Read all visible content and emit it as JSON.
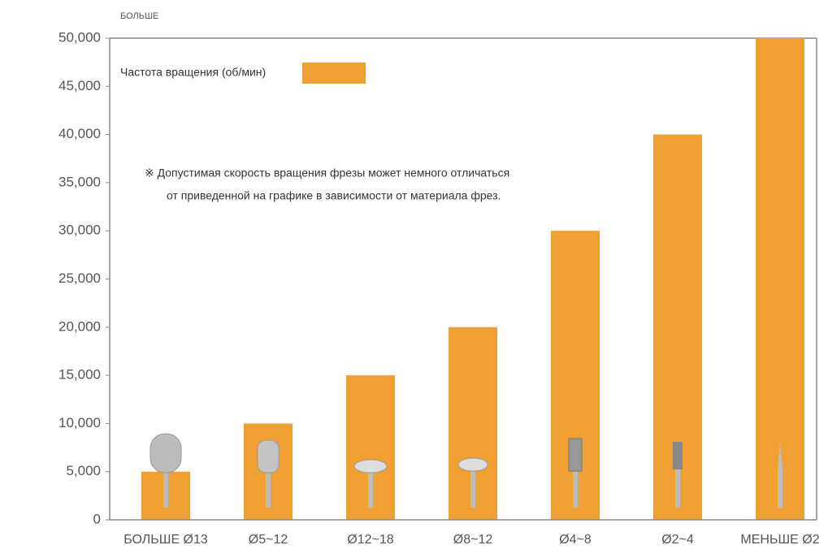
{
  "chart_data": {
    "type": "bar",
    "ylabel": "БОЛЬШЕ",
    "categories": [
      "БОЛЬШЕ Ø13",
      "Ø5~12",
      "Ø12~18",
      "Ø8~12",
      "Ø4~8",
      "Ø2~4",
      "МЕНЬШЕ Ø2"
    ],
    "series": [
      {
        "name": "Частота вращения (об/мин)",
        "color": "#f0a032",
        "values": [
          5000,
          10000,
          15000,
          20000,
          30000,
          40000,
          50000
        ]
      }
    ],
    "annotation": [
      "※ Допустимая скорость вращения фрезы может немного отличаться",
      "от приведенной на графике в зависимости от материала фрез."
    ],
    "ylim": [
      0,
      50000
    ],
    "yticks": [
      0,
      {
        "value": 5000,
        "label": "5,000"
      },
      {
        "value": 10000,
        "label": "10,000"
      },
      {
        "value": 15000,
        "label": "15,000"
      },
      {
        "value": 20000,
        "label": "20,000"
      },
      {
        "value": 25000,
        "label": "25,000"
      },
      {
        "value": 30000,
        "label": "30,000"
      },
      {
        "value": 35000,
        "label": "35,000"
      },
      {
        "value": 40000,
        "label": "40,000"
      },
      {
        "value": 45000,
        "label": "45,000"
      },
      {
        "value": 50000,
        "label": "50,000"
      }
    ],
    "grid": false,
    "legend": "upper left"
  }
}
